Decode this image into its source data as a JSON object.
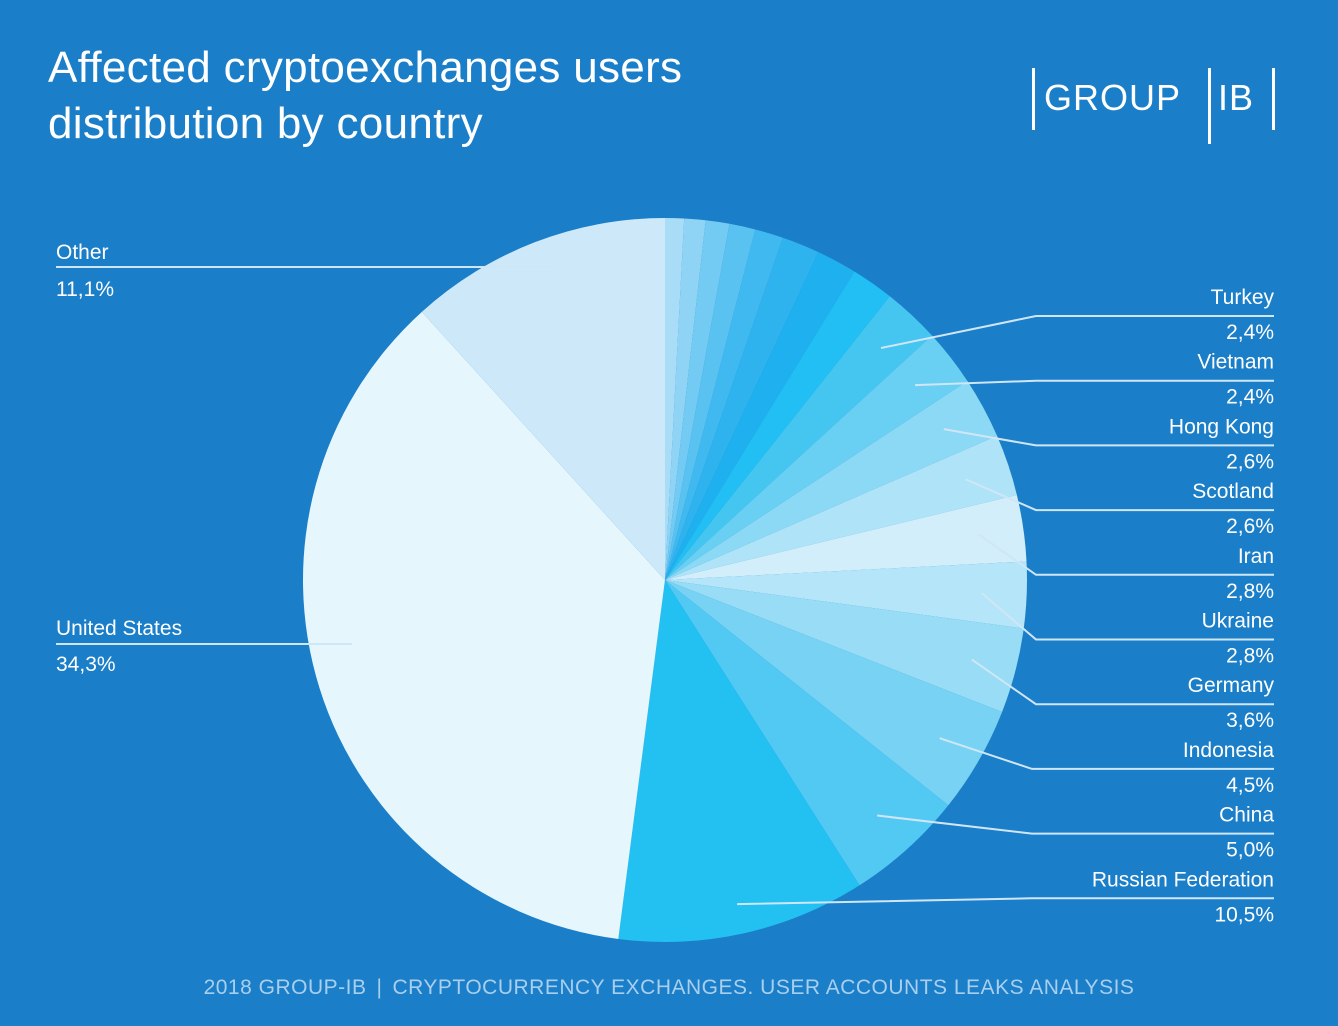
{
  "title": "Affected cryptoexchanges users\ndistribution by country",
  "logo": {
    "left": "GROUP",
    "right": "IB"
  },
  "footer": {
    "left": "2018 GROUP-IB",
    "sep": "|",
    "right": "CRYPTOCURRENCY EXCHANGES. USER ACCOUNTS LEAKS ANALYSIS"
  },
  "colors": {
    "background": "#1a7ec8",
    "leader_line": "#cfe6f7",
    "label_text": "#ffffff"
  },
  "chart_data": {
    "type": "pie",
    "title": "Affected cryptoexchanges users distribution by country",
    "start_angle_deg": 0,
    "direction": "clockwise",
    "slices": [
      {
        "label": "",
        "value": 0.8,
        "color": "#a9dcf6"
      },
      {
        "label": "",
        "value": 0.9,
        "color": "#8fd3f5"
      },
      {
        "label": "",
        "value": 1.0,
        "color": "#73caf3"
      },
      {
        "label": "",
        "value": 1.1,
        "color": "#5ac2f1"
      },
      {
        "label": "",
        "value": 1.2,
        "color": "#3fb9ef"
      },
      {
        "label": "",
        "value": 1.6,
        "color": "#2fb3ee"
      },
      {
        "label": "",
        "value": 1.7,
        "color": "#1fb0ef"
      },
      {
        "label": "",
        "value": 1.8,
        "color": "#21bff3"
      },
      {
        "label": "Turkey",
        "value_text": "2,4%",
        "value": 2.4,
        "color": "#45c6f1"
      },
      {
        "label": "Vietnam",
        "value_text": "2,4%",
        "value": 2.4,
        "color": "#69d0f3"
      },
      {
        "label": "Hong Kong",
        "value_text": "2,6%",
        "value": 2.6,
        "color": "#8cd9f5"
      },
      {
        "label": "Scotland",
        "value_text": "2,6%",
        "value": 2.6,
        "color": "#afe3f8"
      },
      {
        "label": "Iran",
        "value_text": "2,8%",
        "value": 2.8,
        "color": "#d3eefb"
      },
      {
        "label": "Ukraine",
        "value_text": "2,8%",
        "value": 2.8,
        "color": "#b5e5f8"
      },
      {
        "label": "Germany",
        "value_text": "3,6%",
        "value": 3.6,
        "color": "#98dcf6"
      },
      {
        "label": "Indonesia",
        "value_text": "4,5%",
        "value": 4.5,
        "color": "#78d2f4"
      },
      {
        "label": "China",
        "value_text": "5,0%",
        "value": 5.0,
        "color": "#52c9f2"
      },
      {
        "label": "Russian Federation",
        "value_text": "10,5%",
        "value": 10.5,
        "color": "#23c0f2"
      },
      {
        "label": "United States",
        "value_text": "34,3%",
        "value": 34.3,
        "color": "#e6f6fd"
      },
      {
        "label": "Other",
        "value_text": "11,1%",
        "value": 11.1,
        "color": "#cde9f9"
      }
    ],
    "legend": "none"
  }
}
